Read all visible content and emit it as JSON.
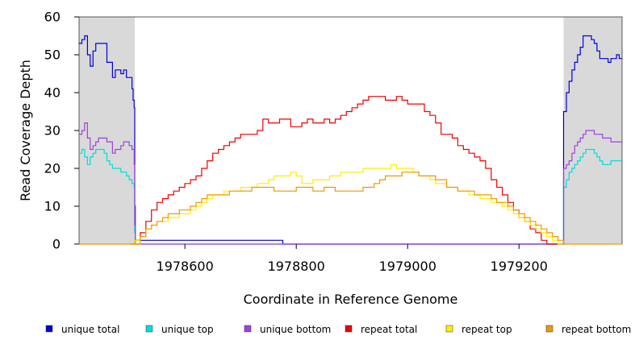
{
  "chart_data": {
    "type": "line",
    "title": "",
    "xlabel": "Coordinate in Reference Genome",
    "ylabel": "Read Coverage Depth",
    "xlim": [
      1978410,
      1979385
    ],
    "ylim": [
      0,
      60
    ],
    "xticks": [
      1978600,
      1978800,
      1979000,
      1979200
    ],
    "yticks": [
      0,
      10,
      20,
      30,
      40,
      50,
      60
    ],
    "grid": false,
    "legend_position": "bottom",
    "shaded_regions": [
      {
        "from": 1978410,
        "to": 1978510,
        "color": "#d9d9d9"
      },
      {
        "from": 1979280,
        "to": 1979385,
        "color": "#d9d9d9"
      }
    ],
    "series": [
      {
        "name": "unique total",
        "color": "#0000dd",
        "x": [
          1978410,
          1978415,
          1978420,
          1978425,
          1978430,
          1978435,
          1978440,
          1978445,
          1978450,
          1978455,
          1978460,
          1978465,
          1978470,
          1978475,
          1978480,
          1978485,
          1978490,
          1978495,
          1978500,
          1978505,
          1978507,
          1978509,
          1978510,
          1978511,
          1978700,
          1978775,
          1978776,
          1979279,
          1979280,
          1979285,
          1979290,
          1979295,
          1979300,
          1979305,
          1979310,
          1979315,
          1979320,
          1979325,
          1979330,
          1979335,
          1979340,
          1979345,
          1979350,
          1979355,
          1979360,
          1979365,
          1979370,
          1979375,
          1979380,
          1979385
        ],
        "y": [
          53,
          54,
          55,
          50,
          47,
          51,
          53,
          53,
          53,
          53,
          48,
          48,
          44,
          46,
          46,
          45,
          46,
          44,
          44,
          41,
          38,
          36,
          10,
          1,
          1,
          1,
          0,
          0,
          35,
          40,
          43,
          46,
          48,
          50,
          52,
          55,
          55,
          55,
          54,
          53,
          51,
          49,
          49,
          49,
          48,
          49,
          49,
          50,
          49,
          49
        ]
      },
      {
        "name": "unique top",
        "color": "#00dddd",
        "x": [
          1978410,
          1978415,
          1978420,
          1978425,
          1978430,
          1978435,
          1978440,
          1978445,
          1978450,
          1978455,
          1978460,
          1978465,
          1978470,
          1978475,
          1978480,
          1978485,
          1978490,
          1978495,
          1978500,
          1978505,
          1978509,
          1978510,
          1978511,
          1979279,
          1979280,
          1979285,
          1979290,
          1979295,
          1979300,
          1979305,
          1979310,
          1979315,
          1979320,
          1979325,
          1979330,
          1979335,
          1979340,
          1979345,
          1979350,
          1979355,
          1979360,
          1979365,
          1979370,
          1979375,
          1979380,
          1979385
        ],
        "y": [
          24,
          25,
          23,
          21,
          23,
          24,
          25,
          25,
          25,
          24,
          22,
          21,
          20,
          20,
          20,
          19,
          19,
          18,
          17,
          16,
          15,
          3,
          0,
          0,
          15,
          17,
          19,
          20,
          21,
          22,
          23,
          24,
          25,
          25,
          25,
          24,
          23,
          22,
          21,
          21,
          21,
          22,
          22,
          22,
          22,
          22
        ]
      },
      {
        "name": "unique bottom",
        "color": "#a040e0",
        "x": [
          1978410,
          1978415,
          1978420,
          1978425,
          1978430,
          1978435,
          1978440,
          1978445,
          1978450,
          1978455,
          1978460,
          1978465,
          1978470,
          1978475,
          1978480,
          1978485,
          1978490,
          1978495,
          1978500,
          1978505,
          1978509,
          1978510,
          1978511,
          1979279,
          1979280,
          1979285,
          1979290,
          1979295,
          1979300,
          1979305,
          1979310,
          1979315,
          1979320,
          1979325,
          1979330,
          1979335,
          1979340,
          1979345,
          1979350,
          1979355,
          1979360,
          1979365,
          1979370,
          1979375,
          1979380,
          1979385
        ],
        "y": [
          29,
          30,
          32,
          28,
          25,
          26,
          27,
          28,
          28,
          28,
          27,
          27,
          24,
          25,
          25,
          26,
          27,
          27,
          26,
          25,
          21,
          5,
          0,
          0,
          20,
          21,
          22,
          24,
          26,
          27,
          28,
          29,
          30,
          30,
          30,
          29,
          29,
          29,
          28,
          28,
          28,
          27,
          27,
          27,
          27,
          27
        ]
      },
      {
        "name": "repeat total",
        "color": "#ee0000",
        "x": [
          1978500,
          1978510,
          1978520,
          1978530,
          1978540,
          1978550,
          1978560,
          1978570,
          1978580,
          1978590,
          1978600,
          1978610,
          1978620,
          1978630,
          1978640,
          1978650,
          1978660,
          1978670,
          1978680,
          1978690,
          1978700,
          1978710,
          1978720,
          1978730,
          1978740,
          1978750,
          1978760,
          1978770,
          1978780,
          1978790,
          1978800,
          1978810,
          1978820,
          1978830,
          1978840,
          1978850,
          1978860,
          1978870,
          1978880,
          1978890,
          1978900,
          1978910,
          1978920,
          1978930,
          1978940,
          1978950,
          1978960,
          1978970,
          1978980,
          1978990,
          1979000,
          1979010,
          1979020,
          1979030,
          1979040,
          1979050,
          1979060,
          1979070,
          1979080,
          1979090,
          1979100,
          1979110,
          1979120,
          1979130,
          1979140,
          1979150,
          1979160,
          1979170,
          1979180,
          1979190,
          1979200,
          1979210,
          1979220,
          1979230,
          1979240,
          1979250,
          1979260,
          1979270,
          1979280
        ],
        "y": [
          0,
          1,
          3,
          6,
          9,
          11,
          12,
          13,
          14,
          15,
          16,
          17,
          18,
          20,
          22,
          24,
          25,
          26,
          27,
          28,
          29,
          29,
          29,
          30,
          33,
          32,
          32,
          33,
          33,
          31,
          31,
          32,
          33,
          32,
          32,
          33,
          32,
          33,
          34,
          35,
          36,
          37,
          38,
          39,
          39,
          39,
          38,
          38,
          39,
          38,
          37,
          37,
          37,
          35,
          34,
          32,
          29,
          29,
          28,
          26,
          25,
          24,
          23,
          22,
          20,
          17,
          15,
          13,
          11,
          9,
          7,
          6,
          4,
          3,
          1,
          0,
          0,
          0,
          0
        ]
      },
      {
        "name": "repeat top",
        "color": "#ffee00",
        "x": [
          1978500,
          1978510,
          1978520,
          1978530,
          1978540,
          1978550,
          1978560,
          1978570,
          1978580,
          1978590,
          1978600,
          1978610,
          1978620,
          1978630,
          1978640,
          1978650,
          1978660,
          1978670,
          1978680,
          1978690,
          1978700,
          1978710,
          1978720,
          1978730,
          1978740,
          1978750,
          1978760,
          1978770,
          1978780,
          1978790,
          1978800,
          1978810,
          1978820,
          1978830,
          1978840,
          1978850,
          1978860,
          1978870,
          1978880,
          1978890,
          1978900,
          1978910,
          1978920,
          1978930,
          1978940,
          1978950,
          1978960,
          1978970,
          1978980,
          1978990,
          1979000,
          1979010,
          1979020,
          1979030,
          1979040,
          1979050,
          1979060,
          1979070,
          1979080,
          1979090,
          1979100,
          1979110,
          1979120,
          1979130,
          1979140,
          1979150,
          1979160,
          1979170,
          1979180,
          1979190,
          1979200,
          1979210,
          1979220,
          1979230,
          1979240,
          1979250,
          1979260,
          1979270,
          1979280
        ],
        "y": [
          0,
          1,
          2,
          4,
          5,
          6,
          6,
          7,
          7,
          8,
          8,
          9,
          10,
          11,
          12,
          13,
          13,
          14,
          14,
          14,
          15,
          15,
          15,
          16,
          16,
          17,
          18,
          18,
          18,
          19,
          18,
          16,
          16,
          17,
          17,
          17,
          18,
          18,
          19,
          19,
          19,
          19,
          20,
          20,
          20,
          20,
          20,
          21,
          20,
          20,
          20,
          19,
          18,
          18,
          17,
          16,
          16,
          15,
          15,
          14,
          14,
          13,
          13,
          12,
          12,
          11,
          11,
          10,
          9,
          8,
          7,
          6,
          5,
          4,
          3,
          2,
          1,
          0,
          0
        ]
      },
      {
        "name": "repeat bottom",
        "color": "#ee9900",
        "x": [
          1978410,
          1978500,
          1978510,
          1978520,
          1978530,
          1978540,
          1978550,
          1978560,
          1978570,
          1978580,
          1978590,
          1978600,
          1978610,
          1978620,
          1978630,
          1978640,
          1978650,
          1978660,
          1978670,
          1978680,
          1978690,
          1978700,
          1978710,
          1978720,
          1978730,
          1978740,
          1978750,
          1978760,
          1978770,
          1978780,
          1978790,
          1978800,
          1978810,
          1978820,
          1978830,
          1978840,
          1978850,
          1978860,
          1978870,
          1978880,
          1978890,
          1978900,
          1978910,
          1978920,
          1978930,
          1978940,
          1978950,
          1978960,
          1978970,
          1978980,
          1978990,
          1979000,
          1979010,
          1979020,
          1979030,
          1979040,
          1979050,
          1979060,
          1979070,
          1979080,
          1979090,
          1979100,
          1979110,
          1979120,
          1979130,
          1979140,
          1979150,
          1979160,
          1979170,
          1979180,
          1979190,
          1979200,
          1979210,
          1979220,
          1979230,
          1979240,
          1979250,
          1979260,
          1979270,
          1979280,
          1979385
        ],
        "y": [
          0,
          0,
          0,
          2,
          4,
          5,
          6,
          7,
          8,
          8,
          9,
          9,
          10,
          11,
          12,
          13,
          13,
          13,
          13,
          14,
          14,
          14,
          14,
          15,
          15,
          15,
          15,
          14,
          14,
          14,
          14,
          15,
          15,
          15,
          14,
          14,
          15,
          15,
          14,
          14,
          14,
          14,
          14,
          15,
          15,
          16,
          17,
          18,
          18,
          18,
          19,
          19,
          19,
          18,
          18,
          18,
          17,
          17,
          15,
          15,
          14,
          14,
          14,
          13,
          13,
          13,
          12,
          11,
          11,
          10,
          9,
          8,
          7,
          6,
          5,
          4,
          3,
          2,
          1,
          0,
          0
        ]
      }
    ]
  }
}
